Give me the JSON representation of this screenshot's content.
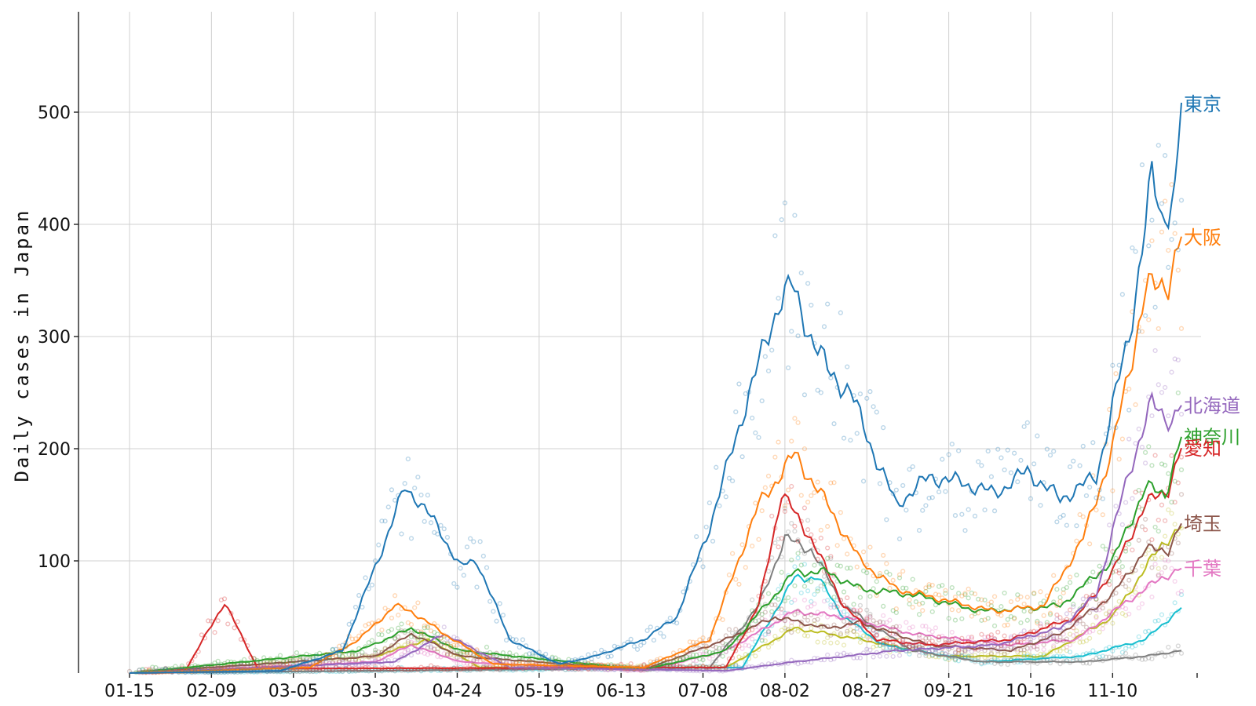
{
  "chart_data": {
    "type": "line",
    "title": "",
    "xlabel": "",
    "ylabel": "Daily cases in Japan",
    "x_range": [
      "2020-01-15",
      "2020-12-01"
    ],
    "ylim": [
      0,
      600
    ],
    "grid": true,
    "legend": "inline-right",
    "x_tick_labels": [
      "01-15",
      "02-09",
      "03-05",
      "03-30",
      "04-24",
      "05-19",
      "06-13",
      "07-08",
      "08-02",
      "08-27",
      "09-21",
      "10-16",
      "11-10"
    ],
    "x_tick_dates": [
      "2020-01-15",
      "2020-02-09",
      "2020-03-05",
      "2020-03-30",
      "2020-04-24",
      "2020-05-19",
      "2020-06-13",
      "2020-07-08",
      "2020-08-02",
      "2020-08-27",
      "2020-09-21",
      "2020-10-16",
      "2020-11-10"
    ],
    "y_ticks": [
      100,
      200,
      300,
      400,
      500
    ],
    "series": [
      {
        "name": "東京",
        "color": "#1f77b4",
        "labeled": true,
        "x": [
          "2020-01-15",
          "2020-03-01",
          "2020-03-20",
          "2020-04-01",
          "2020-04-08",
          "2020-04-12",
          "2020-04-18",
          "2020-04-25",
          "2020-04-30",
          "2020-05-10",
          "2020-05-25",
          "2020-06-05",
          "2020-06-20",
          "2020-06-30",
          "2020-07-10",
          "2020-07-20",
          "2020-07-31",
          "2020-08-04",
          "2020-08-10",
          "2020-08-15",
          "2020-08-22",
          "2020-08-30",
          "2020-09-05",
          "2020-09-15",
          "2020-09-25",
          "2020-10-05",
          "2020-10-15",
          "2020-10-25",
          "2020-11-05",
          "2020-11-15",
          "2020-11-22",
          "2020-11-25",
          "2020-11-29",
          "2020-12-01"
        ],
        "y": [
          0,
          2,
          20,
          110,
          165,
          155,
          130,
          95,
          100,
          30,
          8,
          15,
          30,
          50,
          130,
          230,
          330,
          345,
          300,
          270,
          250,
          190,
          150,
          175,
          170,
          160,
          180,
          155,
          175,
          300,
          440,
          405,
          430,
          507
        ]
      },
      {
        "name": "大阪",
        "color": "#ff7f0e",
        "labeled": true,
        "x": [
          "2020-01-15",
          "2020-03-10",
          "2020-03-25",
          "2020-04-05",
          "2020-04-10",
          "2020-04-20",
          "2020-05-05",
          "2020-06-20",
          "2020-07-10",
          "2020-07-25",
          "2020-08-05",
          "2020-08-15",
          "2020-08-25",
          "2020-09-05",
          "2020-09-20",
          "2020-10-05",
          "2020-10-20",
          "2020-11-01",
          "2020-11-10",
          "2020-11-20",
          "2020-11-27",
          "2020-12-01"
        ],
        "y": [
          0,
          5,
          30,
          60,
          55,
          35,
          8,
          5,
          30,
          150,
          195,
          150,
          100,
          75,
          65,
          55,
          60,
          120,
          200,
          340,
          350,
          388
        ]
      },
      {
        "name": "北海道",
        "color": "#9467bd",
        "labeled": true,
        "x": [
          "2020-01-15",
          "2020-04-05",
          "2020-04-20",
          "2020-05-10",
          "2020-07-15",
          "2020-08-05",
          "2020-09-05",
          "2020-10-05",
          "2020-10-25",
          "2020-11-05",
          "2020-11-15",
          "2020-11-22",
          "2020-11-28",
          "2020-12-01"
        ],
        "y": [
          0,
          10,
          35,
          5,
          2,
          10,
          20,
          25,
          40,
          70,
          180,
          240,
          225,
          238
        ]
      },
      {
        "name": "神奈川",
        "color": "#2ca02c",
        "labeled": true,
        "x": [
          "2020-01-15",
          "2020-03-25",
          "2020-04-10",
          "2020-04-25",
          "2020-06-20",
          "2020-07-15",
          "2020-08-05",
          "2020-08-15",
          "2020-08-25",
          "2020-09-10",
          "2020-10-01",
          "2020-10-25",
          "2020-11-10",
          "2020-11-20",
          "2020-11-26",
          "2020-12-01"
        ],
        "y": [
          0,
          20,
          40,
          20,
          3,
          20,
          90,
          90,
          75,
          70,
          55,
          60,
          100,
          165,
          160,
          210
        ]
      },
      {
        "name": "愛知",
        "color": "#d62728",
        "labeled": true,
        "x": [
          "2020-01-15",
          "2020-02-01",
          "2020-02-13",
          "2020-02-23",
          "2020-03-05",
          "2020-07-15",
          "2020-07-25",
          "2020-08-01",
          "2020-08-10",
          "2020-08-20",
          "2020-08-30",
          "2020-09-15",
          "2020-10-10",
          "2020-10-30",
          "2020-11-10",
          "2020-11-20",
          "2020-11-27",
          "2020-12-01"
        ],
        "y": [
          0,
          2,
          63,
          5,
          4,
          5,
          60,
          160,
          120,
          60,
          30,
          25,
          30,
          50,
          90,
          150,
          165,
          200
        ]
      },
      {
        "name": "埼玉",
        "color": "#8c564b",
        "labeled": true,
        "x": [
          "2020-01-15",
          "2020-03-30",
          "2020-04-10",
          "2020-04-25",
          "2020-06-20",
          "2020-07-15",
          "2020-07-30",
          "2020-08-15",
          "2020-08-25",
          "2020-09-15",
          "2020-10-10",
          "2020-10-25",
          "2020-11-10",
          "2020-11-20",
          "2020-11-27",
          "2020-12-01"
        ],
        "y": [
          0,
          15,
          35,
          15,
          3,
          30,
          50,
          40,
          45,
          25,
          20,
          35,
          70,
          110,
          110,
          133
        ]
      },
      {
        "name": "千葉",
        "color": "#e377c2",
        "labeled": true,
        "x": [
          "2020-01-15",
          "2020-03-30",
          "2020-04-10",
          "2020-04-25",
          "2020-06-20",
          "2020-07-15",
          "2020-08-05",
          "2020-08-20",
          "2020-09-10",
          "2020-10-10",
          "2020-10-30",
          "2020-11-15",
          "2020-11-25",
          "2020-12-01"
        ],
        "y": [
          0,
          10,
          25,
          10,
          2,
          20,
          55,
          50,
          35,
          25,
          30,
          65,
          85,
          93
        ]
      },
      {
        "name": "",
        "color": "#7f7f7f",
        "labeled": false,
        "x": [
          "2020-01-15",
          "2020-07-10",
          "2020-07-25",
          "2020-08-02",
          "2020-08-10",
          "2020-08-20",
          "2020-08-30",
          "2020-09-10",
          "2020-10-01",
          "2020-11-01",
          "2020-11-20",
          "2020-12-01"
        ],
        "y": [
          0,
          5,
          60,
          120,
          110,
          60,
          40,
          20,
          10,
          10,
          15,
          20
        ]
      },
      {
        "name": "",
        "color": "#17becf",
        "labeled": false,
        "x": [
          "2020-01-15",
          "2020-07-20",
          "2020-08-05",
          "2020-08-12",
          "2020-08-20",
          "2020-09-01",
          "2020-10-01",
          "2020-11-01",
          "2020-11-20",
          "2020-12-01"
        ],
        "y": [
          0,
          5,
          85,
          85,
          50,
          25,
          10,
          15,
          30,
          58
        ]
      },
      {
        "name": "",
        "color": "#bcbd22",
        "labeled": false,
        "x": [
          "2020-01-15",
          "2020-03-30",
          "2020-04-15",
          "2020-05-01",
          "2020-07-15",
          "2020-08-05",
          "2020-08-25",
          "2020-09-20",
          "2020-10-20",
          "2020-11-10",
          "2020-11-25",
          "2020-12-01"
        ],
        "y": [
          0,
          15,
          30,
          5,
          5,
          40,
          30,
          15,
          15,
          50,
          115,
          130
        ]
      }
    ]
  }
}
